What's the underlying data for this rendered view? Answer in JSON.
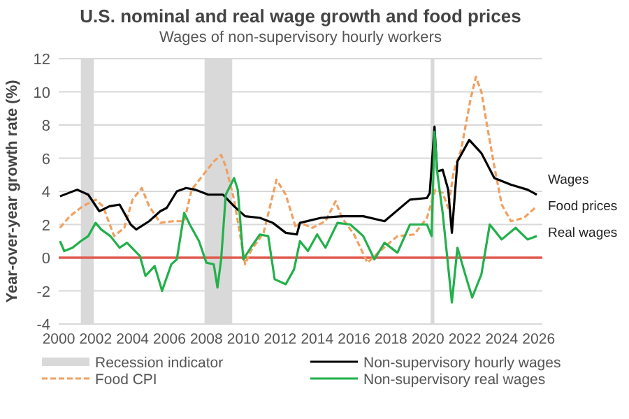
{
  "chart_data": {
    "type": "line",
    "title": "U.S. nominal and real wage growth and food prices",
    "subtitle": "Wages of non-supervisory hourly workers",
    "ylabel": "Year-over-year growth rate (%)",
    "xlim": [
      2000,
      2026.2
    ],
    "xticks": [
      2000,
      2002,
      2004,
      2006,
      2008,
      2010,
      2012,
      2014,
      2016,
      2018,
      2020,
      2022,
      2024,
      2026
    ],
    "ylim": [
      -4,
      12
    ],
    "yticks": [
      -4,
      -2,
      0,
      2,
      4,
      6,
      8,
      10,
      12
    ],
    "grid": "y",
    "legend": "bottom",
    "bands": [
      {
        "axis": "x",
        "from": 2001.2,
        "to": 2001.9,
        "label": "Recession indicator",
        "color": "#d9d9d9"
      },
      {
        "axis": "x",
        "from": 2007.9,
        "to": 2009.4,
        "color": "#d9d9d9"
      },
      {
        "axis": "x",
        "from": 2020.15,
        "to": 2020.35,
        "color": "#d9d9d9"
      }
    ],
    "ref_lines": [
      {
        "axis": "y",
        "value": 0,
        "color": "#e05a4e"
      }
    ],
    "series": [
      {
        "name": "Food CPI",
        "color": "#f0a060",
        "line_style": "dashed",
        "x": [
          2000.07,
          2000.6,
          2001.3,
          2002.0,
          2002.4,
          2003.0,
          2003.55,
          2004.0,
          2004.5,
          2004.9,
          2005.5,
          2006.2,
          2006.8,
          2007.2,
          2007.9,
          2008.4,
          2008.8,
          2009.05,
          2009.5,
          2010.1,
          2010.4,
          2011.1,
          2011.8,
          2012.3,
          2012.85,
          2013.07,
          2013.75,
          2014.45,
          2015.0,
          2015.35,
          2016.0,
          2016.73,
          2017.4,
          2018.35,
          2019.25,
          2019.95,
          2020.4,
          2020.8,
          2021.1,
          2021.4,
          2021.8,
          2022.3,
          2022.6,
          2022.9,
          2023.2,
          2023.6,
          2024.0,
          2024.5,
          2025.2,
          2025.9
        ],
        "values": [
          1.8,
          2.5,
          3.1,
          3.5,
          3.1,
          1.3,
          1.8,
          3.5,
          4.2,
          3.1,
          2.1,
          2.2,
          2.2,
          4.1,
          5.1,
          5.8,
          6.2,
          5.5,
          3.5,
          -0.4,
          0.4,
          1.5,
          4.7,
          3.8,
          1.8,
          2.1,
          1.8,
          2.2,
          3.4,
          2.4,
          1.4,
          -0.3,
          0.4,
          1.3,
          1.4,
          2.4,
          4.1,
          3.9,
          3.0,
          5.2,
          6.5,
          9.5,
          10.9,
          10.0,
          8.0,
          5.5,
          3.2,
          2.2,
          2.4,
          3.1
        ]
      },
      {
        "name": "Non-supervisory hourly wages",
        "color": "#000000",
        "line_style": "solid",
        "x": [
          2000.07,
          2001.0,
          2001.6,
          2002.2,
          2002.75,
          2003.3,
          2003.9,
          2004.2,
          2004.9,
          2005.5,
          2005.85,
          2006.4,
          2006.9,
          2007.4,
          2008.1,
          2008.9,
          2009.5,
          2010.1,
          2010.9,
          2011.6,
          2012.3,
          2012.9,
          2013.07,
          2014.2,
          2015.35,
          2016.5,
          2017.65,
          2019.03,
          2019.95,
          2020.1,
          2020.36,
          2020.5,
          2020.8,
          2021.1,
          2021.3,
          2021.6,
          2022.24,
          2022.9,
          2023.6,
          2024.5,
          2025.4,
          2025.9
        ],
        "values": [
          3.7,
          4.1,
          3.8,
          2.8,
          3.1,
          3.2,
          2.0,
          1.7,
          2.2,
          2.8,
          3.0,
          4.0,
          4.2,
          4.1,
          3.8,
          3.8,
          3.1,
          2.5,
          2.4,
          2.1,
          1.5,
          1.4,
          2.1,
          2.4,
          2.5,
          2.5,
          2.2,
          3.5,
          3.6,
          3.9,
          7.9,
          5.2,
          5.3,
          4.1,
          1.5,
          5.8,
          7.1,
          6.3,
          4.8,
          4.4,
          4.1,
          3.8
        ]
      },
      {
        "name": "Non-supervisory real wages",
        "color": "#22b04b",
        "line_style": "solid",
        "x": [
          2000.07,
          2000.3,
          2000.75,
          2001.2,
          2001.6,
          2002.0,
          2002.3,
          2002.8,
          2003.3,
          2003.7,
          2004.4,
          2004.7,
          2005.2,
          2005.6,
          2006.1,
          2006.4,
          2006.8,
          2007.1,
          2007.6,
          2008.0,
          2008.4,
          2008.6,
          2008.8,
          2009.05,
          2009.5,
          2009.7,
          2010.0,
          2010.4,
          2010.9,
          2011.35,
          2011.7,
          2012.3,
          2012.75,
          2013.07,
          2013.5,
          2014.0,
          2014.45,
          2015.1,
          2015.8,
          2016.5,
          2017.1,
          2017.65,
          2018.35,
          2019.03,
          2019.95,
          2020.2,
          2020.36,
          2020.5,
          2020.8,
          2021.3,
          2021.6,
          2022.1,
          2022.4,
          2022.9,
          2023.35,
          2024.0,
          2024.75,
          2025.4,
          2025.9
        ],
        "values": [
          1.0,
          0.4,
          0.6,
          1.0,
          1.3,
          2.1,
          1.7,
          1.3,
          0.6,
          0.9,
          0.1,
          -1.1,
          -0.5,
          -2.0,
          -0.4,
          -0.1,
          2.7,
          2.0,
          1.0,
          -0.3,
          -0.4,
          -1.8,
          -0.1,
          3.8,
          4.8,
          4.1,
          -0.1,
          0.6,
          1.4,
          1.3,
          -1.3,
          -1.6,
          -0.7,
          1.0,
          0.4,
          1.4,
          0.6,
          2.1,
          2.0,
          1.3,
          -0.1,
          0.9,
          0.3,
          2.0,
          2.0,
          1.3,
          7.6,
          5.2,
          2.7,
          -2.7,
          0.6,
          -1.3,
          -2.4,
          -1.0,
          2.0,
          1.1,
          1.8,
          1.1,
          1.3
        ]
      }
    ],
    "annotations": [
      "Wages",
      "Food prices",
      "Real wages"
    ]
  }
}
